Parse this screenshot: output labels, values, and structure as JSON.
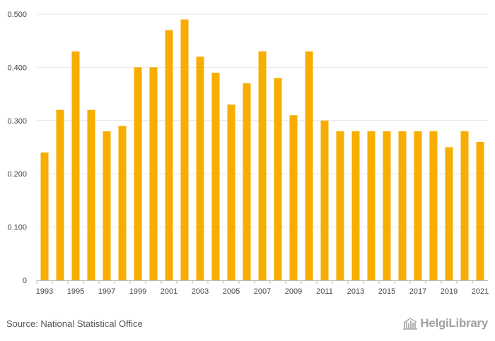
{
  "chart_data": {
    "type": "bar",
    "title": "",
    "xlabel": "",
    "ylabel": "",
    "ylim": [
      0,
      0.5
    ],
    "yticks": [
      "0",
      "0.100",
      "0.200",
      "0.300",
      "0.400",
      "0.500"
    ],
    "ytick_values": [
      0,
      0.1,
      0.2,
      0.3,
      0.4,
      0.5
    ],
    "categories": [
      "1993",
      "1994",
      "1995",
      "1996",
      "1997",
      "1998",
      "1999",
      "2000",
      "2001",
      "2002",
      "2003",
      "2004",
      "2005",
      "2006",
      "2007",
      "2008",
      "2009",
      "2010",
      "2011",
      "2012",
      "2013",
      "2014",
      "2015",
      "2016",
      "2017",
      "2018",
      "2019",
      "2020",
      "2021"
    ],
    "xtick_labels": [
      "1993",
      "1995",
      "1997",
      "1999",
      "2001",
      "2003",
      "2005",
      "2007",
      "2009",
      "2011",
      "2013",
      "2015",
      "2017",
      "2019",
      "2021"
    ],
    "values": [
      0.24,
      0.32,
      0.43,
      0.32,
      0.28,
      0.29,
      0.4,
      0.4,
      0.47,
      0.49,
      0.42,
      0.39,
      0.33,
      0.37,
      0.43,
      0.38,
      0.31,
      0.43,
      0.3,
      0.28,
      0.28,
      0.28,
      0.28,
      0.28,
      0.28,
      0.28,
      0.25,
      0.28,
      0.26
    ],
    "bar_color": "#F7AE00",
    "grid": true
  },
  "footer": {
    "source": "Source: National Statistical Office",
    "logo": "HelgiLibrary"
  }
}
